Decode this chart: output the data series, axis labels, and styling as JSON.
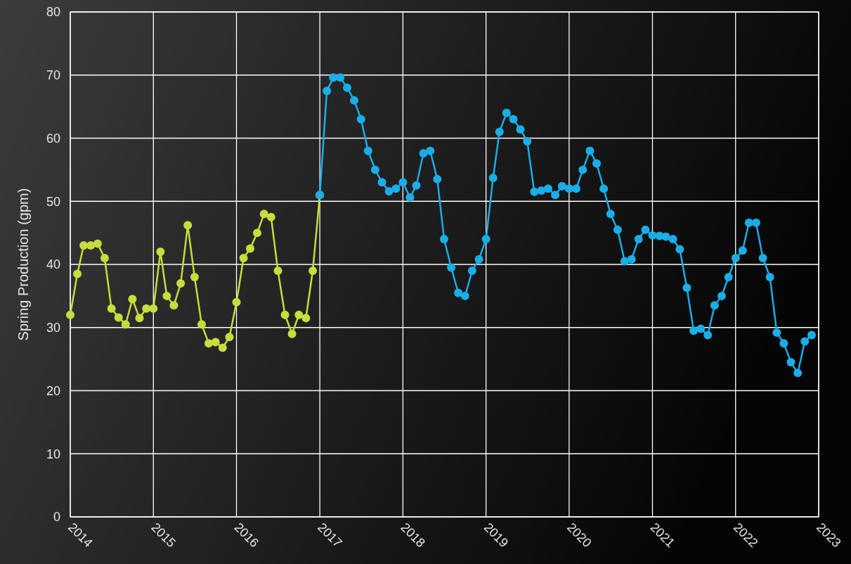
{
  "chart_data": {
    "type": "line",
    "ylabel": "Spring Production (gpm)",
    "xlim": [
      "2014",
      "2023"
    ],
    "ylim": [
      0,
      80
    ],
    "xticks": [
      "2014",
      "2015",
      "2016",
      "2017",
      "2018",
      "2019",
      "2020",
      "2021",
      "2022",
      "2023"
    ],
    "yticks": [
      0,
      10,
      20,
      30,
      40,
      50,
      60,
      70,
      80
    ],
    "grid": true,
    "marker": "circle",
    "line_style": "solid",
    "series": [
      {
        "color": "#c8dc3c",
        "x": [
          "2014-01",
          "2014-02",
          "2014-03",
          "2014-04",
          "2014-05",
          "2014-06",
          "2014-07",
          "2014-08",
          "2014-09",
          "2014-10",
          "2014-11",
          "2014-12",
          "2015-01",
          "2015-02",
          "2015-03",
          "2015-04",
          "2015-05",
          "2015-06",
          "2015-07",
          "2015-08",
          "2015-09",
          "2015-10",
          "2015-11",
          "2015-12",
          "2016-01",
          "2016-02",
          "2016-03",
          "2016-04",
          "2016-05",
          "2016-06",
          "2016-07",
          "2016-08",
          "2016-09",
          "2016-10",
          "2016-11",
          "2016-12",
          "2017-01"
        ],
        "values": [
          32,
          38.5,
          43,
          43,
          43.3,
          41,
          33,
          31.6,
          30.5,
          34.5,
          31.5,
          33,
          33,
          42,
          35,
          33.5,
          37,
          46.2,
          38,
          30.5,
          27.5,
          27.7,
          26.8,
          28.5,
          34,
          41,
          42.5,
          45,
          48,
          47.5,
          39,
          32,
          29,
          32,
          31.5,
          39,
          51
        ]
      },
      {
        "color": "#1aaee8",
        "x": [
          "2017-01",
          "2017-02",
          "2017-03",
          "2017-04",
          "2017-05",
          "2017-06",
          "2017-07",
          "2017-08",
          "2017-09",
          "2017-10",
          "2017-11",
          "2017-12",
          "2018-01",
          "2018-02",
          "2018-03",
          "2018-04",
          "2018-05",
          "2018-06",
          "2018-07",
          "2018-08",
          "2018-09",
          "2018-10",
          "2018-11",
          "2018-12",
          "2019-01",
          "2019-02",
          "2019-03",
          "2019-04",
          "2019-05",
          "2019-06",
          "2019-07",
          "2019-08",
          "2019-09",
          "2019-10",
          "2019-11",
          "2019-12",
          "2020-01",
          "2020-02",
          "2020-03",
          "2020-04",
          "2020-05",
          "2020-06",
          "2020-07",
          "2020-08",
          "2020-09",
          "2020-10",
          "2020-11",
          "2020-12",
          "2021-01",
          "2021-02",
          "2021-03",
          "2021-04",
          "2021-05",
          "2021-06",
          "2021-07",
          "2021-08",
          "2021-09",
          "2021-10",
          "2021-11",
          "2021-12",
          "2022-01",
          "2022-02",
          "2022-03",
          "2022-04",
          "2022-05",
          "2022-06",
          "2022-07",
          "2022-08",
          "2022-09",
          "2022-10",
          "2022-11",
          "2022-12"
        ],
        "values": [
          51,
          67.5,
          69.6,
          69.6,
          68,
          66,
          63,
          58,
          55,
          53,
          51.6,
          52,
          53,
          50.6,
          52.5,
          57.6,
          58,
          53.5,
          44,
          39.5,
          35.5,
          35,
          39,
          40.8,
          44,
          53.7,
          61,
          64,
          63,
          61.4,
          59.5,
          51.5,
          51.7,
          52,
          51,
          52.4,
          52,
          52,
          55,
          58,
          56,
          52,
          48,
          45.5,
          40.5,
          40.8,
          44,
          45.5,
          44.6,
          44.5,
          44.4,
          44,
          42.4,
          36.3,
          29.5,
          29.8,
          28.8,
          33.5,
          35,
          38,
          41,
          42.2,
          46.6,
          46.6,
          41,
          38,
          29.2,
          27.5,
          24.5,
          22.8,
          27.8,
          28.8
        ]
      }
    ]
  }
}
